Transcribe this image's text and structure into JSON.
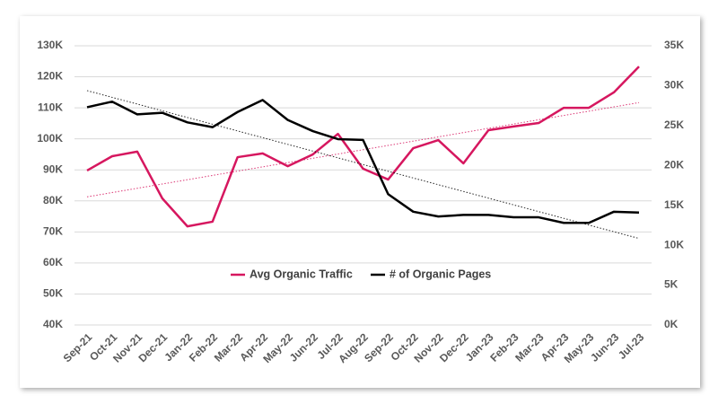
{
  "chart_data": {
    "type": "line",
    "categories": [
      "Sep-21",
      "Oct-21",
      "Nov-21",
      "Dec-21",
      "Jan-22",
      "Feb-22",
      "Mar-22",
      "Apr-22",
      "May-22",
      "Jun-22",
      "Jul-22",
      "Aug-22",
      "Sep-22",
      "Oct-22",
      "Nov-22",
      "Dec-22",
      "Jan-23",
      "Feb-23",
      "Mar-23",
      "Apr-23",
      "May-23",
      "Jun-23",
      "Jul-23"
    ],
    "series": [
      {
        "name": "Avg Organic Traffic",
        "color": "#d6175f",
        "trendline": "linear",
        "values": [
          89800,
          94400,
          95900,
          80800,
          71800,
          73300,
          94100,
          95300,
          91200,
          95000,
          101600,
          90400,
          86900,
          97000,
          99600,
          92100,
          102800,
          104000,
          105100,
          110000,
          110000,
          115000,
          123300
        ]
      },
      {
        "name": "# of Organic Pages",
        "color": "#000000",
        "axis": "y2",
        "trendline": "linear",
        "values": [
          27300,
          28000,
          26400,
          26600,
          25400,
          24800,
          26700,
          28200,
          25700,
          24300,
          23300,
          23200,
          16400,
          14200,
          13600,
          13800,
          13800,
          13500,
          13500,
          12800,
          12800,
          14200,
          14100
        ]
      }
    ],
    "ylim": [
      40000,
      130000
    ],
    "yticks": [
      {
        "value": 40000,
        "label": "40K"
      },
      {
        "value": 50000,
        "label": "50K"
      },
      {
        "value": 60000,
        "label": "60K"
      },
      {
        "value": 70000,
        "label": "70K"
      },
      {
        "value": 80000,
        "label": "80K"
      },
      {
        "value": 90000,
        "label": "90K"
      },
      {
        "value": 100000,
        "label": "100K"
      },
      {
        "value": 110000,
        "label": "110K"
      },
      {
        "value": 120000,
        "label": "120K"
      },
      {
        "value": 130000,
        "label": "130K"
      }
    ],
    "y2lim": [
      0,
      35000
    ],
    "y2ticks": [
      {
        "value": 0,
        "label": "0K"
      },
      {
        "value": 5000,
        "label": "5K"
      },
      {
        "value": 10000,
        "label": "10K"
      },
      {
        "value": 15000,
        "label": "15K"
      },
      {
        "value": 20000,
        "label": "20K"
      },
      {
        "value": 25000,
        "label": "25K"
      },
      {
        "value": 30000,
        "label": "30K"
      },
      {
        "value": 35000,
        "label": "35K"
      }
    ],
    "grid": true,
    "legend": "center"
  }
}
